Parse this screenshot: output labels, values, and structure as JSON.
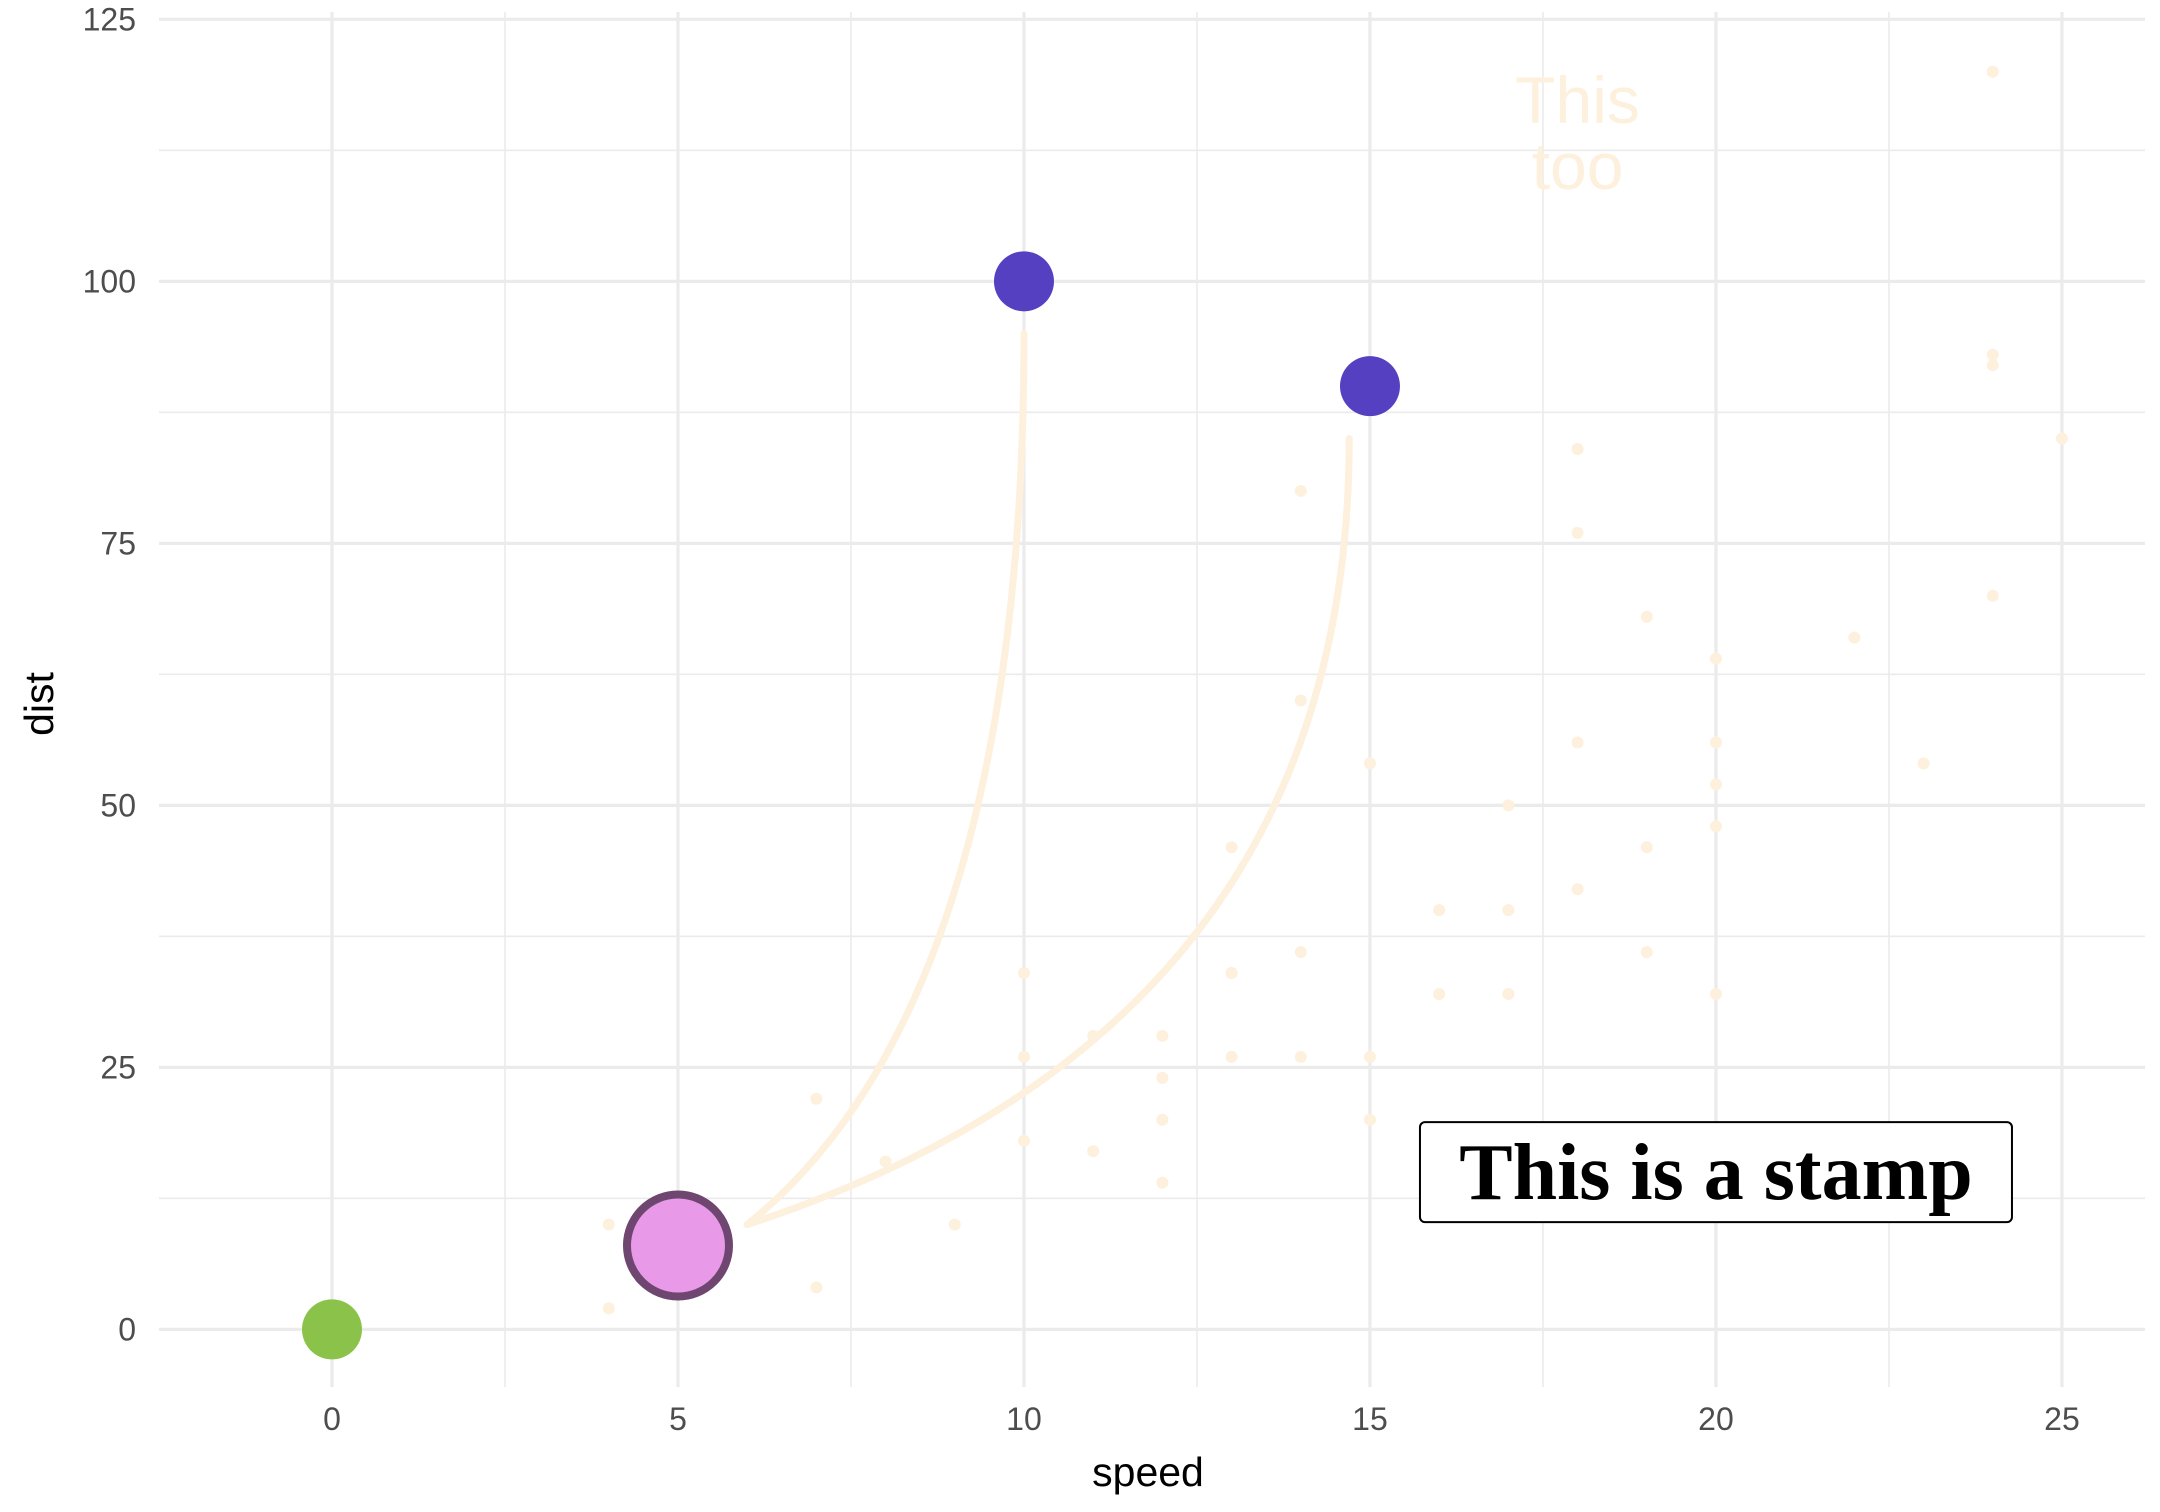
{
  "chart_data": {
    "type": "scatter",
    "xlabel": "speed",
    "ylabel": "dist",
    "xlim": [
      -2.5,
      26.2
    ],
    "ylim": [
      -5.5,
      125.7
    ],
    "x_ticks": [
      0,
      5,
      10,
      15,
      20,
      25
    ],
    "x_tick_labels": [
      "0",
      "5",
      "10",
      "15",
      "20",
      "25"
    ],
    "y_ticks": [
      0,
      25,
      50,
      75,
      100,
      125
    ],
    "y_tick_labels": [
      "0",
      "25",
      "50",
      "75",
      "100",
      "125"
    ],
    "grid": true,
    "legend": "none",
    "colors": {
      "background_points": "#fdf0dc",
      "arrows": "#fdf0dc",
      "origin_point": "#8bc34a",
      "highlight_point": "#e899e8",
      "highlight_outline": "#6e4670",
      "target_points": "#5540c2",
      "grid": "#ebebeb"
    },
    "background_points": [
      [
        4,
        2
      ],
      [
        4,
        10
      ],
      [
        7,
        4
      ],
      [
        7,
        22
      ],
      [
        8,
        16
      ],
      [
        9,
        10
      ],
      [
        10,
        18
      ],
      [
        10,
        26
      ],
      [
        10,
        34
      ],
      [
        11,
        17
      ],
      [
        11,
        28
      ],
      [
        12,
        14
      ],
      [
        12,
        20
      ],
      [
        12,
        24
      ],
      [
        12,
        28
      ],
      [
        13,
        26
      ],
      [
        13,
        34
      ],
      [
        13,
        34
      ],
      [
        13,
        46
      ],
      [
        14,
        26
      ],
      [
        14,
        36
      ],
      [
        14,
        60
      ],
      [
        14,
        80
      ],
      [
        15,
        20
      ],
      [
        15,
        26
      ],
      [
        15,
        54
      ],
      [
        16,
        32
      ],
      [
        16,
        40
      ],
      [
        17,
        32
      ],
      [
        17,
        40
      ],
      [
        17,
        50
      ],
      [
        18,
        42
      ],
      [
        18,
        56
      ],
      [
        18,
        76
      ],
      [
        18,
        84
      ],
      [
        19,
        36
      ],
      [
        19,
        46
      ],
      [
        19,
        68
      ],
      [
        20,
        32
      ],
      [
        20,
        48
      ],
      [
        20,
        52
      ],
      [
        20,
        56
      ],
      [
        20,
        64
      ],
      [
        22,
        66
      ],
      [
        23,
        54
      ],
      [
        24,
        70
      ],
      [
        24,
        92
      ],
      [
        24,
        93
      ],
      [
        24,
        120
      ],
      [
        25,
        85
      ]
    ],
    "highlighted_points": [
      {
        "role": "origin",
        "x": 0,
        "y": 0
      },
      {
        "role": "source",
        "x": 5,
        "y": 8
      },
      {
        "role": "target",
        "x": 10,
        "y": 100
      },
      {
        "role": "target",
        "x": 15,
        "y": 90
      }
    ],
    "arrows": [
      {
        "from": [
          6,
          10
        ],
        "to": [
          10,
          95
        ]
      },
      {
        "from": [
          6,
          10
        ],
        "to": [
          14.7,
          85
        ]
      }
    ],
    "annotations": [
      {
        "text_lines": [
          "This",
          "too"
        ],
        "x": 18,
        "y": 113
      },
      {
        "text": "This is a stamp",
        "x": 20,
        "y": 15,
        "boxed": true
      }
    ]
  }
}
